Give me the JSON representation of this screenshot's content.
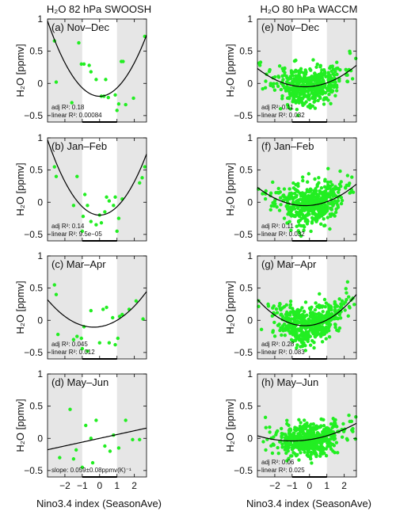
{
  "figure": {
    "column_titles": [
      "H₂O 82 hPa SWOOSH",
      "H₂O 80 hPa WACCM"
    ],
    "ylabel": "H₂O [ppmv]",
    "xlabel": "Nino3.4 index (SeasonAve)",
    "colors": {
      "points": "#22ee22",
      "shade": "#e6e6e6",
      "fit": "#000000",
      "axis": "#000000"
    }
  },
  "chart_data": [
    {
      "id": "a",
      "type": "scatter",
      "title": "(a) Nov–Dec",
      "xlim": [
        -3,
        2.7
      ],
      "ylim": [
        -0.6,
        1.0
      ],
      "xticks": [
        -2,
        -1,
        0,
        1,
        2
      ],
      "yticks": [
        -0.5,
        0,
        0.5,
        1
      ],
      "shaded_x": [
        [
          -3,
          -1
        ],
        [
          1,
          2.7
        ]
      ],
      "grid": false,
      "fit": {
        "kind": "quadratic",
        "coef": [
          0.13,
          0.0,
          -0.2
        ]
      },
      "stats": [
        "adj R²: 0.18",
        "linear R²: 0.00084"
      ],
      "points": [
        [
          -2.6,
          0.66
        ],
        [
          -2.5,
          0.02
        ],
        [
          -1.6,
          -0.3
        ],
        [
          -1.2,
          0.63
        ],
        [
          -1.05,
          0.3
        ],
        [
          -0.9,
          0.3
        ],
        [
          -0.6,
          0.28
        ],
        [
          -0.5,
          0.18
        ],
        [
          -0.2,
          0.06
        ],
        [
          0.1,
          -0.2
        ],
        [
          0.25,
          -0.2
        ],
        [
          0.35,
          0.06
        ],
        [
          0.5,
          -0.22
        ],
        [
          0.9,
          -0.18
        ],
        [
          1.0,
          -0.42
        ],
        [
          1.1,
          -0.32
        ],
        [
          1.25,
          0.34
        ],
        [
          1.35,
          0.34
        ],
        [
          1.5,
          -0.33
        ],
        [
          1.95,
          -0.23
        ],
        [
          2.6,
          0.73
        ]
      ]
    },
    {
      "id": "b",
      "type": "scatter",
      "title": "(b) Jan–Feb",
      "xlim": [
        -3,
        2.7
      ],
      "ylim": [
        -0.6,
        1.0
      ],
      "xticks": [
        -2,
        -1,
        0,
        1,
        2
      ],
      "yticks": [
        -0.5,
        0,
        0.5,
        1
      ],
      "shaded_x": [
        [
          -3,
          -1
        ],
        [
          1,
          2.7
        ]
      ],
      "grid": false,
      "fit": {
        "kind": "quadratic",
        "coef": [
          0.13,
          0.0,
          -0.2
        ]
      },
      "stats": [
        "adj R²: 0.14",
        "linear R²: 9.5e−05"
      ],
      "points": [
        [
          -2.6,
          0.55
        ],
        [
          -2.5,
          0.4
        ],
        [
          -1.5,
          -0.05
        ],
        [
          -1.3,
          0.4
        ],
        [
          -1.0,
          -0.45
        ],
        [
          -0.95,
          -0.22
        ],
        [
          -0.85,
          0.12
        ],
        [
          -0.7,
          -0.05
        ],
        [
          -0.5,
          -0.3
        ],
        [
          -0.2,
          -0.35
        ],
        [
          0.0,
          -0.2
        ],
        [
          0.1,
          -0.32
        ],
        [
          0.3,
          -0.15
        ],
        [
          0.4,
          0.08
        ],
        [
          0.55,
          0.02
        ],
        [
          0.8,
          -0.05
        ],
        [
          0.9,
          0.08
        ],
        [
          1.0,
          -0.45
        ],
        [
          1.1,
          -0.25
        ],
        [
          1.3,
          0.05
        ],
        [
          2.3,
          0.3
        ],
        [
          2.45,
          0.38
        ],
        [
          2.6,
          0.55
        ]
      ]
    },
    {
      "id": "c",
      "type": "scatter",
      "title": "(c) Mar–Apr",
      "xlim": [
        -3,
        2.7
      ],
      "ylim": [
        -0.6,
        1.0
      ],
      "xticks": [
        -2,
        -1,
        0,
        1,
        2
      ],
      "yticks": [
        -0.5,
        0,
        0.5,
        1
      ],
      "shaded_x": [
        [
          -3,
          -1
        ],
        [
          1,
          2.7
        ]
      ],
      "grid": false,
      "fit": {
        "kind": "quadratic",
        "coef": [
          0.06,
          0.04,
          -0.1
        ]
      },
      "stats": [
        "adj R²: 0.045",
        "linear R²: 0.012"
      ],
      "points": [
        [
          -2.6,
          0.55
        ],
        [
          -2.5,
          0.4
        ],
        [
          -2.4,
          -0.22
        ],
        [
          -1.5,
          -0.3
        ],
        [
          -1.3,
          -0.25
        ],
        [
          -1.05,
          -0.28
        ],
        [
          -1.0,
          -0.44
        ],
        [
          -0.9,
          -0.1
        ],
        [
          -0.7,
          -0.48
        ],
        [
          -0.5,
          0.15
        ],
        [
          0.0,
          -0.35
        ],
        [
          0.2,
          0.17
        ],
        [
          0.4,
          0.2
        ],
        [
          0.55,
          -0.35
        ],
        [
          0.75,
          0.04
        ],
        [
          0.9,
          -0.38
        ],
        [
          1.05,
          -0.28
        ],
        [
          1.15,
          0.06
        ],
        [
          1.3,
          0.09
        ],
        [
          1.7,
          0.17
        ],
        [
          2.1,
          0.3
        ],
        [
          2.5,
          0.02
        ]
      ]
    },
    {
      "id": "d",
      "type": "scatter",
      "title": "(d) May–Jun",
      "xlim": [
        -3,
        2.7
      ],
      "ylim": [
        -0.6,
        1.0
      ],
      "xticks": [
        -2,
        -1,
        0,
        1,
        2
      ],
      "yticks": [
        -0.5,
        0,
        0.5,
        1
      ],
      "shaded_x": [
        [
          -3,
          -1
        ],
        [
          1,
          2.7
        ]
      ],
      "grid": false,
      "fit": {
        "kind": "linear",
        "coef": [
          0.0,
          0.059,
          0.0
        ]
      },
      "stats": [
        "slope: 0.059±0.08ppmv(K)⁻¹"
      ],
      "points": [
        [
          -2.3,
          -0.3
        ],
        [
          -1.7,
          0.45
        ],
        [
          -1.5,
          -0.32
        ],
        [
          -1.35,
          -0.18
        ],
        [
          -1.0,
          -0.45
        ],
        [
          -0.8,
          0.2
        ],
        [
          -0.5,
          0.0
        ],
        [
          -0.4,
          -0.38
        ],
        [
          -0.2,
          0.28
        ],
        [
          0.3,
          -0.12
        ],
        [
          0.6,
          -0.2
        ],
        [
          0.8,
          0.05
        ],
        [
          1.1,
          -0.15
        ],
        [
          1.5,
          0.28
        ],
        [
          1.9,
          -0.02
        ],
        [
          2.3,
          -0.02
        ]
      ]
    },
    {
      "id": "e",
      "type": "scatter",
      "title": "(e) Nov–Dec",
      "xlim": [
        -3,
        2.7
      ],
      "ylim": [
        -0.6,
        1.0
      ],
      "xticks": [
        -2,
        -1,
        0,
        1,
        2
      ],
      "yticks": [
        -0.5,
        0,
        0.5,
        1
      ],
      "shaded_x": [
        [
          -3,
          -1
        ],
        [
          1,
          2.7
        ]
      ],
      "grid": false,
      "fit": {
        "kind": "quadratic",
        "coef": [
          0.038,
          0.02,
          -0.05
        ]
      },
      "stats": [
        "adj R²: 0.11",
        "linear R²: 0.032"
      ],
      "cloud": {
        "n": 500,
        "x_center": 0.0,
        "x_sd": 1.0,
        "y_sd": 0.15,
        "seed": 11
      }
    },
    {
      "id": "f",
      "type": "scatter",
      "title": "(f) Jan–Feb",
      "xlim": [
        -3,
        2.7
      ],
      "ylim": [
        -0.6,
        1.0
      ],
      "xticks": [
        -2,
        -1,
        0,
        1,
        2
      ],
      "yticks": [
        -0.5,
        0,
        0.5,
        1
      ],
      "shaded_x": [
        [
          -3,
          -1
        ],
        [
          1,
          2.7
        ]
      ],
      "grid": false,
      "fit": {
        "kind": "quadratic",
        "coef": [
          0.038,
          0.02,
          -0.05
        ]
      },
      "stats": [
        "adj R²: 0.11",
        "linear R²: 0.032"
      ],
      "cloud": {
        "n": 500,
        "x_center": 0.0,
        "x_sd": 1.0,
        "y_sd": 0.16,
        "seed": 23
      }
    },
    {
      "id": "g",
      "type": "scatter",
      "title": "(g) Mar–Apr",
      "xlim": [
        -3,
        2.7
      ],
      "ylim": [
        -0.6,
        1.0
      ],
      "xticks": [
        -2,
        -1,
        0,
        1,
        2
      ],
      "yticks": [
        -0.5,
        0,
        0.5,
        1
      ],
      "shaded_x": [
        [
          -3,
          -1
        ],
        [
          1,
          2.7
        ]
      ],
      "grid": false,
      "fit": {
        "kind": "quadratic",
        "coef": [
          0.055,
          0.03,
          -0.08
        ]
      },
      "stats": [
        "adj R²: 0.28",
        "linear R²: 0.083"
      ],
      "cloud": {
        "n": 500,
        "x_center": 0.0,
        "x_sd": 1.0,
        "y_sd": 0.15,
        "seed": 37
      }
    },
    {
      "id": "h",
      "type": "scatter",
      "title": "(h) May–Jun",
      "xlim": [
        -3,
        2.7
      ],
      "ylim": [
        -0.6,
        1.0
      ],
      "xticks": [
        -2,
        -1,
        0,
        1,
        2
      ],
      "yticks": [
        -0.5,
        0,
        0.5,
        1
      ],
      "shaded_x": [
        [
          -3,
          -1
        ],
        [
          1,
          2.7
        ]
      ],
      "grid": false,
      "fit": {
        "kind": "quadratic",
        "coef": [
          0.02,
          0.04,
          -0.02
        ]
      },
      "stats": [
        "adj R²: 0.06",
        "linear R²: 0.025"
      ],
      "cloud": {
        "n": 500,
        "x_center": 0.0,
        "x_sd": 1.0,
        "y_sd": 0.13,
        "seed": 53
      }
    }
  ]
}
